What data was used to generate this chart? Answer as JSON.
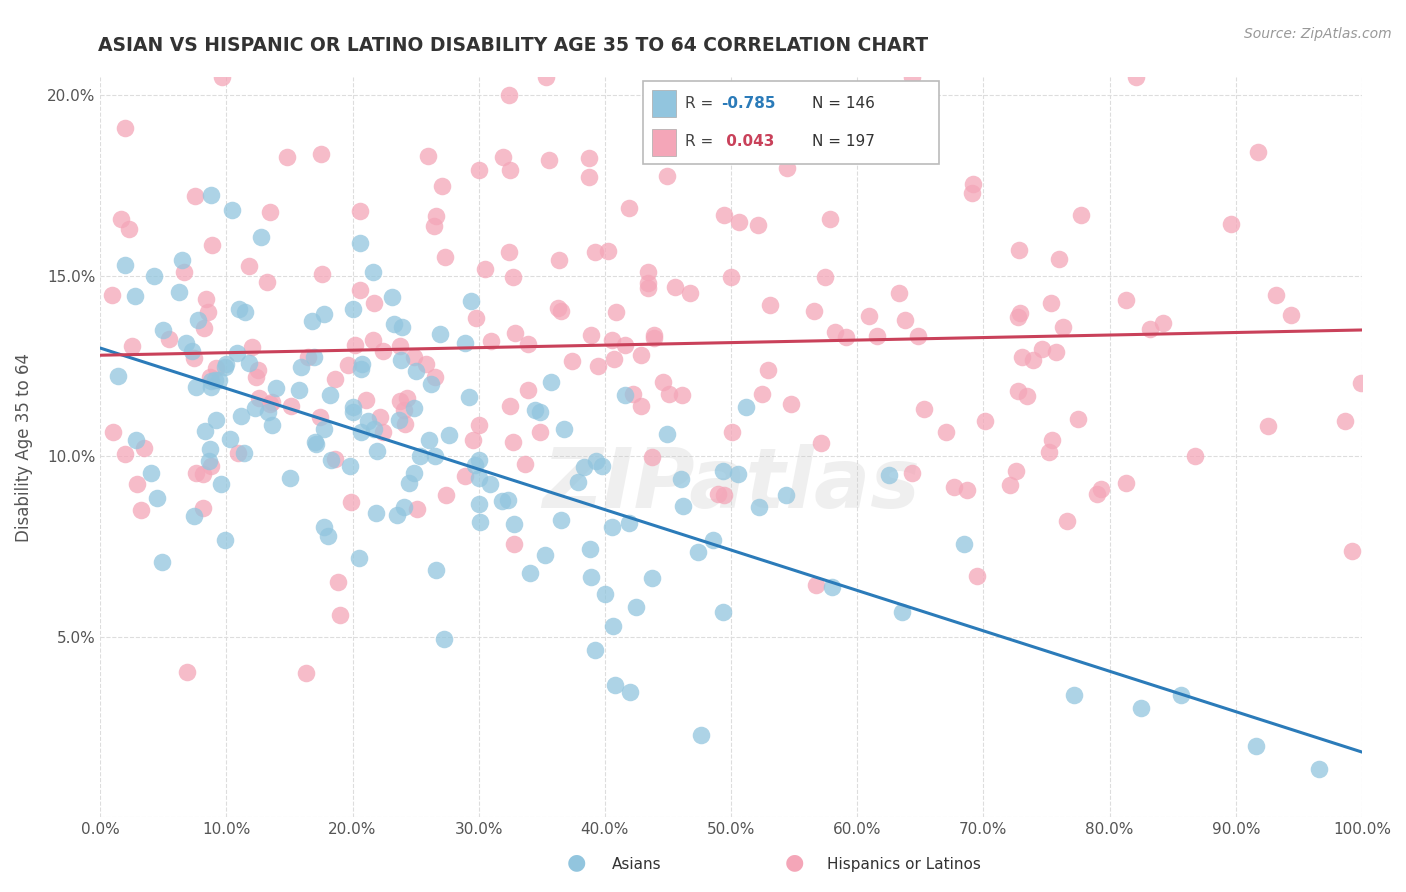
{
  "title": "ASIAN VS HISPANIC OR LATINO DISABILITY AGE 35 TO 64 CORRELATION CHART",
  "source": "Source: ZipAtlas.com",
  "ylabel": "Disability Age 35 to 64",
  "legend_asian": "Asians",
  "legend_hispanic": "Hispanics or Latinos",
  "R_asian": -0.785,
  "N_asian": 146,
  "R_hispanic": 0.043,
  "N_hispanic": 197,
  "xlim": [
    0.0,
    1.0
  ],
  "ylim": [
    0.0,
    0.205
  ],
  "xticks": [
    0.0,
    0.1,
    0.2,
    0.3,
    0.4,
    0.5,
    0.6,
    0.7,
    0.8,
    0.9,
    1.0
  ],
  "yticks": [
    0.0,
    0.05,
    0.1,
    0.15,
    0.2
  ],
  "xticklabels": [
    "0.0%",
    "10.0%",
    "20.0%",
    "30.0%",
    "40.0%",
    "50.0%",
    "60.0%",
    "70.0%",
    "80.0%",
    "90.0%",
    "100.0%"
  ],
  "yticklabels": [
    "",
    "5.0%",
    "10.0%",
    "15.0%",
    "20.0%"
  ],
  "color_asian": "#92C5DE",
  "color_hispanic": "#F4A6B8",
  "line_color_asian": "#2B7BB9",
  "line_color_hispanic": "#C9415A",
  "background_color": "#FFFFFF",
  "grid_color": "#DDDDDD",
  "asian_line_start_y": 0.13,
  "asian_line_end_y": 0.018,
  "hispanic_line_start_y": 0.128,
  "hispanic_line_end_y": 0.135,
  "watermark_text": "ZIPatlas",
  "asian_seed": 42,
  "hispanic_seed": 123
}
